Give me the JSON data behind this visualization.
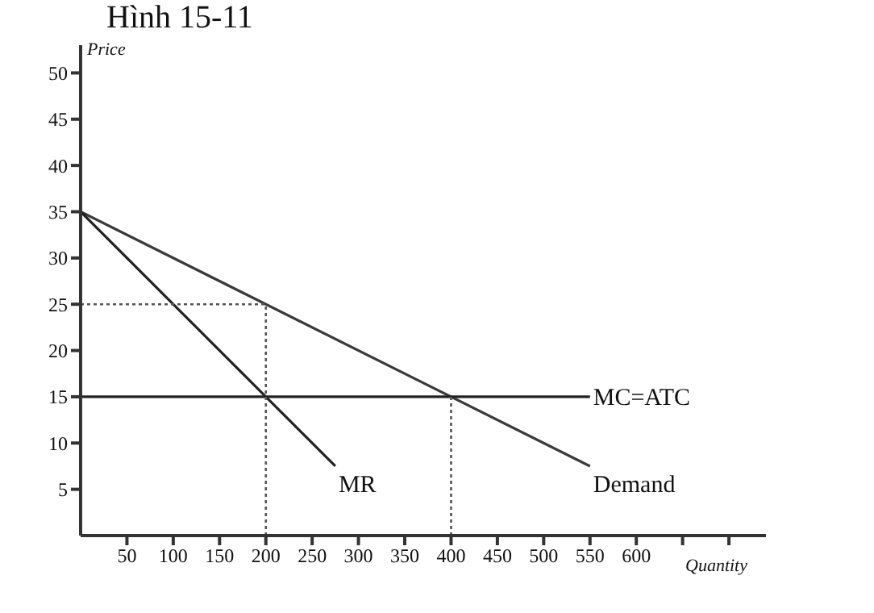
{
  "chart_data": {
    "type": "line",
    "title": "Hình 15-11",
    "xlabel": "Quantity",
    "ylabel": "Price",
    "xlim": [
      0,
      740
    ],
    "ylim": [
      0,
      53
    ],
    "xticks": [
      50,
      100,
      150,
      200,
      250,
      300,
      350,
      400,
      450,
      500,
      550,
      600,
      {
        "value": 650,
        "label": null
      },
      {
        "value": 700,
        "label": null
      }
    ],
    "yticks": [
      5,
      10,
      15,
      20,
      25,
      30,
      35,
      40,
      45,
      50
    ],
    "marker": "none",
    "series": [
      {
        "color": "#3a3a3a",
        "x": [
          0,
          550
        ],
        "values": [
          35,
          7.5
        ]
      },
      {
        "color": "#222222",
        "x": [
          0,
          275
        ],
        "values": [
          35,
          7.5
        ]
      },
      {
        "color": "#222222",
        "x": [
          0,
          550
        ],
        "values": [
          15,
          15
        ]
      },
      {
        "color": "#555555",
        "x": [
          0,
          200
        ],
        "values": [
          25,
          25
        ],
        "line_style": "dotted"
      },
      {
        "color": "#555555",
        "x": [
          200,
          200
        ],
        "values": [
          0,
          25
        ],
        "line_style": "dotted"
      },
      {
        "color": "#555555",
        "x": [
          400,
          400
        ],
        "values": [
          0,
          15
        ],
        "line_style": "dotted"
      }
    ],
    "annotations": [
      "Demand",
      "MR",
      "MC=ATC"
    ]
  }
}
